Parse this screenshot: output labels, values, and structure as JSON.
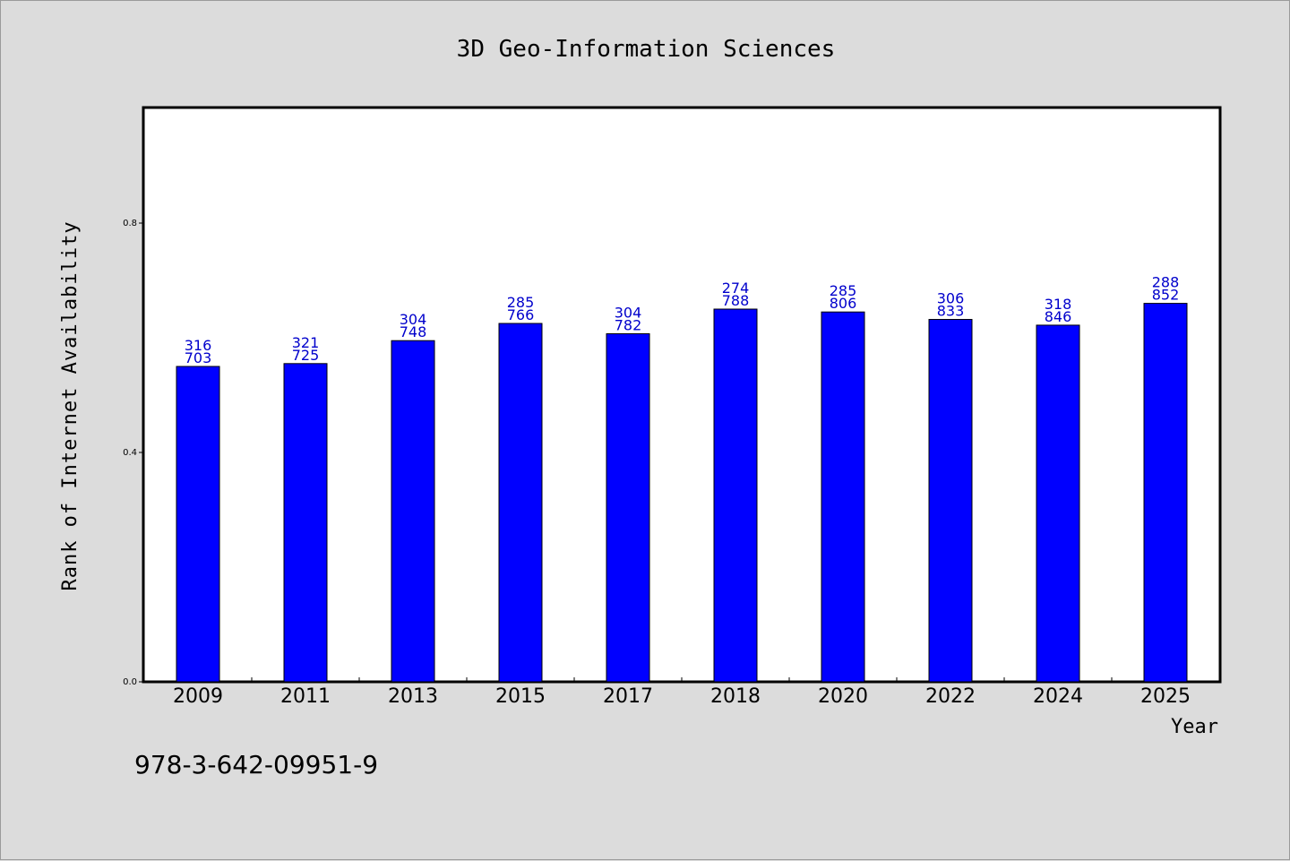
{
  "chart_data": {
    "type": "bar",
    "title": "3D Geo-Information Sciences",
    "xlabel": "Year",
    "ylabel": "Rank of Internet Availability",
    "categories": [
      "2009",
      "2011",
      "2013",
      "2015",
      "2017",
      "2018",
      "2020",
      "2022",
      "2024",
      "2025"
    ],
    "values": [
      0.55,
      0.555,
      0.595,
      0.625,
      0.607,
      0.65,
      0.645,
      0.632,
      0.622,
      0.66
    ],
    "data_labels": [
      [
        "316",
        "703"
      ],
      [
        "321",
        "725"
      ],
      [
        "304",
        "748"
      ],
      [
        "285",
        "766"
      ],
      [
        "304",
        "782"
      ],
      [
        "274",
        "788"
      ],
      [
        "285",
        "806"
      ],
      [
        "306",
        "833"
      ],
      [
        "318",
        "846"
      ],
      [
        "288",
        "852"
      ]
    ],
    "ylim": [
      0.0,
      1.0
    ],
    "yticks": [
      "0.0",
      "0.4",
      "0.8"
    ],
    "grid": false,
    "legend": "none",
    "colors": {
      "bar": "#0000ff",
      "bar_edge": "#000000",
      "data_label": "#0000cc",
      "background": "#dcdcdc",
      "plot_background": "#ffffff"
    }
  },
  "footer": {
    "isbn": "978-3-642-09951-9"
  }
}
